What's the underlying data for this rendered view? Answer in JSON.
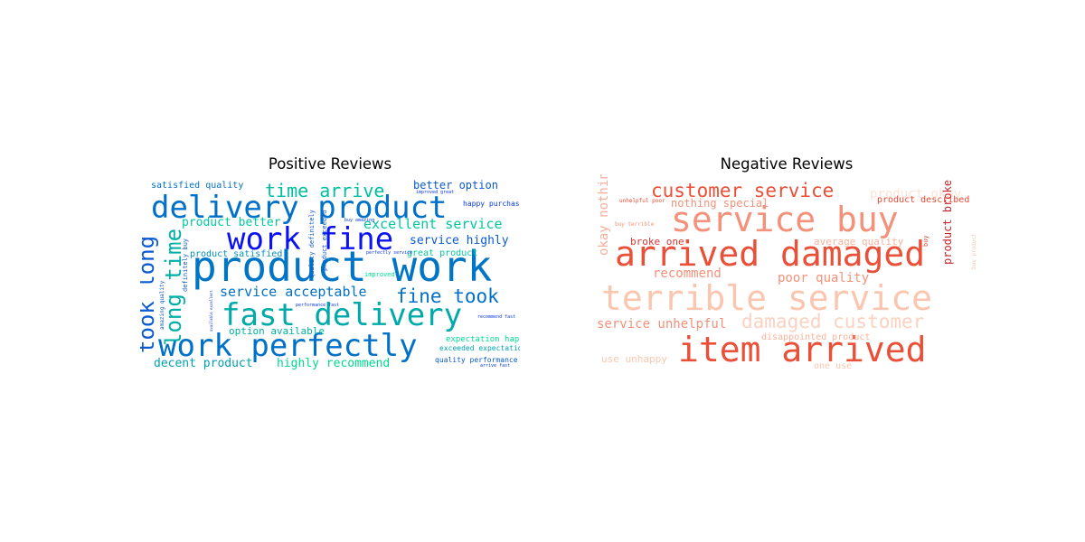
{
  "chart_data": [
    {
      "type": "wordcloud",
      "title": "Positive Reviews",
      "colormap": "winter",
      "words": [
        {
          "text": "product work",
          "color": "#0074c5"
        },
        {
          "text": "delivery product",
          "color": "#0070c8"
        },
        {
          "text": "fast delivery",
          "color": "#00aaaa"
        },
        {
          "text": "work perfectly",
          "color": "#0070c8"
        },
        {
          "text": "work fine",
          "color": "#0a12f4"
        },
        {
          "text": "took long",
          "color": "#0a5ad0"
        },
        {
          "text": "time arrive",
          "color": "#00bfa0"
        },
        {
          "text": "long time",
          "color": "#00b0a8"
        },
        {
          "text": "fine took",
          "color": "#0070c8"
        },
        {
          "text": "service acceptable",
          "color": "#0070c8"
        },
        {
          "text": "excellent service",
          "color": "#00c8a0"
        },
        {
          "text": "product better",
          "color": "#00c8a0"
        },
        {
          "text": "service highly",
          "color": "#0a5ad0"
        },
        {
          "text": "better option",
          "color": "#0a5ad0"
        },
        {
          "text": "satisfied quality",
          "color": "#0070c8"
        },
        {
          "text": "decent product",
          "color": "#00a0b0"
        },
        {
          "text": "highly recommend",
          "color": "#00d890"
        },
        {
          "text": "option available",
          "color": "#00b0a0"
        },
        {
          "text": "product satisfied",
          "color": "#0090b8"
        },
        {
          "text": "great product",
          "color": "#00c8a0"
        },
        {
          "text": "expectation happy",
          "color": "#00e090"
        },
        {
          "text": "exceeded expectation",
          "color": "#00a0b0"
        },
        {
          "text": "quality performance",
          "color": "#0a5ad0"
        },
        {
          "text": "happy purchase",
          "color": "#0a3ae0"
        },
        {
          "text": "improved",
          "color": "#00e090"
        },
        {
          "text": "definitely buy",
          "color": "#0a5ad0"
        },
        {
          "text": "amazing quality",
          "color": "#0a5ad0"
        },
        {
          "text": "quality definitely",
          "color": "#0a5ad0"
        },
        {
          "text": "product exceeded",
          "color": "#0a5ad0"
        },
        {
          "text": "improved great",
          "color": "#0a3ae0"
        },
        {
          "text": "buy amazing",
          "color": "#0a3ae0"
        },
        {
          "text": "perfectly service",
          "color": "#0a3ae0"
        },
        {
          "text": "performance fast",
          "color": "#0a3ae0"
        },
        {
          "text": "recommend fast",
          "color": "#0a3ae0"
        },
        {
          "text": "arrive fast",
          "color": "#0a3ae0"
        },
        {
          "text": "available excellent",
          "color": "#0a3ae0"
        }
      ]
    },
    {
      "type": "wordcloud",
      "title": "Negative Reviews",
      "colormap": "Reds",
      "words": [
        {
          "text": "service buy",
          "color": "#f4917a"
        },
        {
          "text": "arrived damaged",
          "color": "#ea4f38"
        },
        {
          "text": "terrible service",
          "color": "#fbc6b0"
        },
        {
          "text": "item arrived",
          "color": "#ea4f38"
        },
        {
          "text": "customer service",
          "color": "#ea4f38"
        },
        {
          "text": "damaged customer",
          "color": "#fbd2c0"
        },
        {
          "text": "poor quality",
          "color": "#f4917a"
        },
        {
          "text": "service unhelpful",
          "color": "#f4917a"
        },
        {
          "text": "okay nothing",
          "color": "#f4b09b"
        },
        {
          "text": "recommend",
          "color": "#f4917a"
        },
        {
          "text": "nothing special",
          "color": "#f4917a"
        },
        {
          "text": "product okay",
          "color": "#fce3d8"
        },
        {
          "text": "product described",
          "color": "#e84a33"
        },
        {
          "text": "product broke",
          "color": "#c8242a"
        },
        {
          "text": "broke one",
          "color": "#d8352e"
        },
        {
          "text": "average quality",
          "color": "#f7b39c"
        },
        {
          "text": "disappointed product",
          "color": "#f7b39c"
        },
        {
          "text": "use unhappy",
          "color": "#fbc6b0"
        },
        {
          "text": "one use",
          "color": "#fbc6b0"
        },
        {
          "text": "unhelpful poor",
          "color": "#e84a33"
        },
        {
          "text": "buy terrible",
          "color": "#f4917a"
        },
        {
          "text": "buy product",
          "color": "#fbc6b0"
        },
        {
          "text": "buy",
          "color": "#e84a33"
        }
      ]
    }
  ]
}
